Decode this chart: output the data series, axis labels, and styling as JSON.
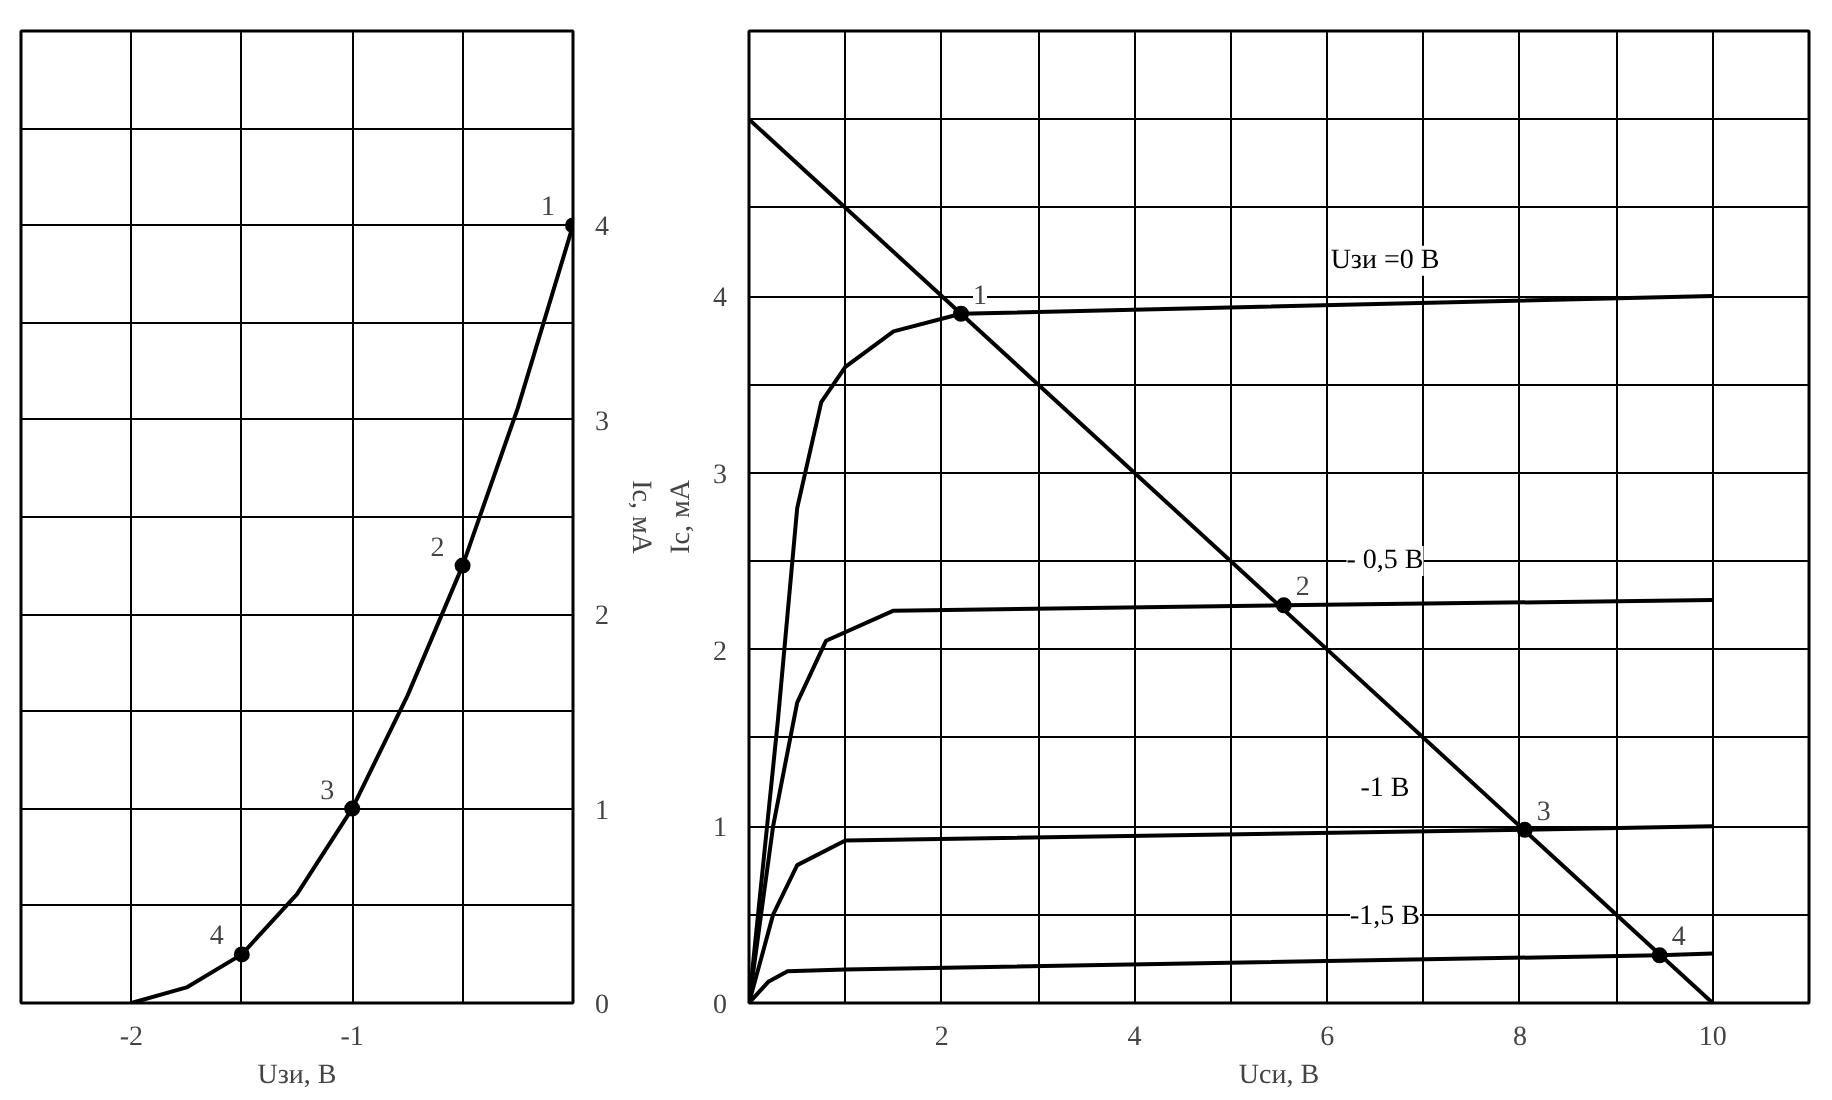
{
  "chart_data": [
    {
      "type": "line",
      "xlabel": "Uзи, В",
      "ylabel": "Iс, мА",
      "xlim": [
        -2.5,
        0
      ],
      "ylim": [
        0,
        5
      ],
      "xticks": [
        {
          "value": -2.5,
          "label": null
        },
        -2,
        {
          "value": -1.5,
          "label": null
        },
        -1,
        {
          "value": -0.5,
          "label": null
        },
        {
          "value": 0,
          "label": null
        }
      ],
      "yticks": [
        0,
        {
          "value": 0.5,
          "label": null
        },
        1,
        {
          "value": 1.5,
          "label": null
        },
        2,
        {
          "value": 2.5,
          "label": null
        },
        3,
        {
          "value": 3.5,
          "label": null
        },
        4,
        {
          "value": 4.5,
          "label": null
        },
        {
          "value": 5,
          "label": null
        }
      ],
      "grid": true,
      "legend": false,
      "line_style": "solid",
      "series": [
        {
          "color": "#000000",
          "marker": "none",
          "x": [
            -2,
            -1.75,
            -1.5,
            -1.25,
            -1,
            -0.75,
            -0.5,
            -0.25,
            0
          ],
          "values": [
            0,
            0.08,
            0.25,
            0.56,
            1,
            1.58,
            2.25,
            3.06,
            4
          ]
        },
        {
          "type": "scatter",
          "color": "#000000",
          "marker": "circle",
          "x": [
            0,
            -0.5,
            -1,
            -1.5
          ],
          "values": [
            4,
            2.25,
            1,
            0.25
          ]
        }
      ],
      "annotations": [
        {
          "text": "1",
          "x": 0,
          "y": 4
        },
        {
          "text": "2",
          "x": -0.5,
          "y": 2.25
        },
        {
          "text": "3",
          "x": -1,
          "y": 1
        },
        {
          "text": "4",
          "x": -1.5,
          "y": 0.25
        }
      ]
    },
    {
      "type": "line",
      "xlabel": "Uси, В",
      "ylabel": "Iс, мА",
      "xlim": [
        0,
        11
      ],
      "ylim": [
        0,
        5.5
      ],
      "xticks": [
        {
          "value": 0,
          "label": null
        },
        {
          "value": 1,
          "label": null
        },
        2,
        {
          "value": 3,
          "label": null
        },
        4,
        {
          "value": 5,
          "label": null
        },
        6,
        {
          "value": 7,
          "label": null
        },
        8,
        {
          "value": 9,
          "label": null
        },
        10,
        {
          "value": 11,
          "label": null
        }
      ],
      "yticks": [
        0,
        {
          "value": 0.5,
          "label": null
        },
        1,
        {
          "value": 1.5,
          "label": null
        },
        2,
        {
          "value": 2.5,
          "label": null
        },
        3,
        {
          "value": 3.5,
          "label": null
        },
        4,
        {
          "value": 4.5,
          "label": null
        },
        {
          "value": 5,
          "label": null
        },
        {
          "value": 5.5,
          "label": null
        }
      ],
      "grid": true,
      "legend": false,
      "line_style": "solid",
      "series": [
        {
          "name": "Uзи =0 В",
          "color": "#000000",
          "marker": "none",
          "x": [
            0,
            0.15,
            0.3,
            0.5,
            0.75,
            1,
            1.5,
            2.2,
            10
          ],
          "values": [
            0,
            0.8,
            1.6,
            2.8,
            3.4,
            3.6,
            3.8,
            3.9,
            4.0
          ]
        },
        {
          "name": "- 0,5 В",
          "color": "#000000",
          "marker": "none",
          "x": [
            0,
            0.25,
            0.5,
            0.8,
            1.5,
            5.55,
            10
          ],
          "values": [
            0,
            1.0,
            1.7,
            2.05,
            2.22,
            2.25,
            2.28
          ]
        },
        {
          "name": "-1 В",
          "color": "#000000",
          "marker": "none",
          "x": [
            0,
            0.25,
            0.5,
            1,
            8.05,
            10
          ],
          "values": [
            0,
            0.5,
            0.78,
            0.92,
            0.98,
            1.0
          ]
        },
        {
          "name": "-1,5 В",
          "color": "#000000",
          "marker": "none",
          "x": [
            0,
            0.2,
            0.4,
            1,
            9.45,
            10
          ],
          "values": [
            0,
            0.12,
            0.18,
            0.19,
            0.27,
            0.28
          ]
        },
        {
          "color": "#000000",
          "marker": "none",
          "x": [
            0,
            10
          ],
          "values": [
            5,
            0
          ]
        },
        {
          "type": "scatter",
          "color": "#000000",
          "marker": "circle",
          "x": [
            2.2,
            5.55,
            8.05,
            9.45
          ],
          "values": [
            3.9,
            2.25,
            0.98,
            0.27
          ]
        }
      ],
      "annotations": [
        {
          "text": "1",
          "x": 2.2,
          "y": 3.9
        },
        {
          "text": "2",
          "x": 5.55,
          "y": 2.25
        },
        {
          "text": "3",
          "x": 8.05,
          "y": 0.98
        },
        {
          "text": "4",
          "x": 9.45,
          "y": 0.27
        }
      ]
    }
  ]
}
